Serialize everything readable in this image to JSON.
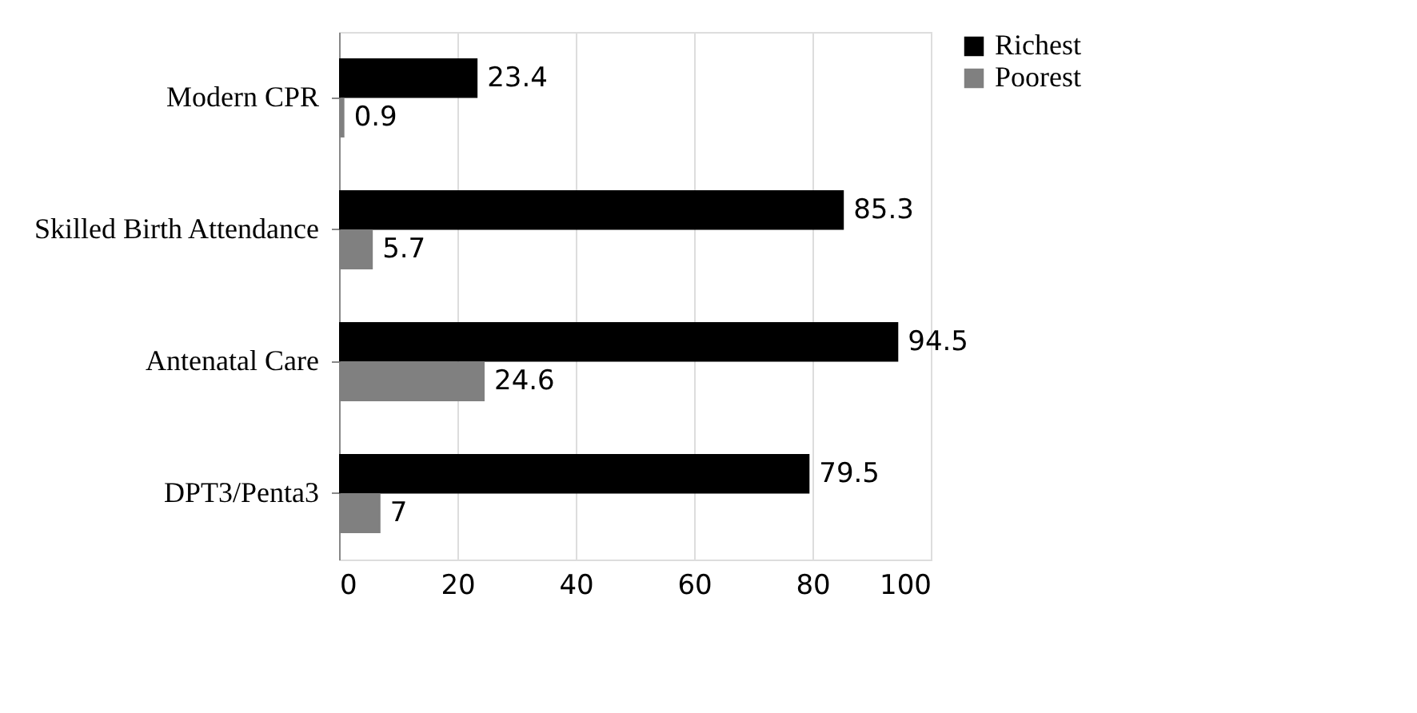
{
  "chart_data": {
    "type": "bar",
    "orientation": "horizontal",
    "categories": [
      "Modern CPR",
      "Skilled Birth Attendance",
      "Antenatal Care",
      "DPT3/Penta3"
    ],
    "series": [
      {
        "name": "Richest",
        "color": "#000000",
        "values": [
          23.4,
          85.3,
          94.5,
          79.5
        ]
      },
      {
        "name": "Poorest",
        "color": "#808080",
        "values": [
          0.9,
          5.7,
          24.6,
          7
        ]
      }
    ],
    "xlim": [
      0,
      100
    ],
    "xticks": [
      0,
      20,
      40,
      60,
      80,
      100
    ],
    "grid": "x",
    "legend": "right",
    "data_labels": true
  }
}
